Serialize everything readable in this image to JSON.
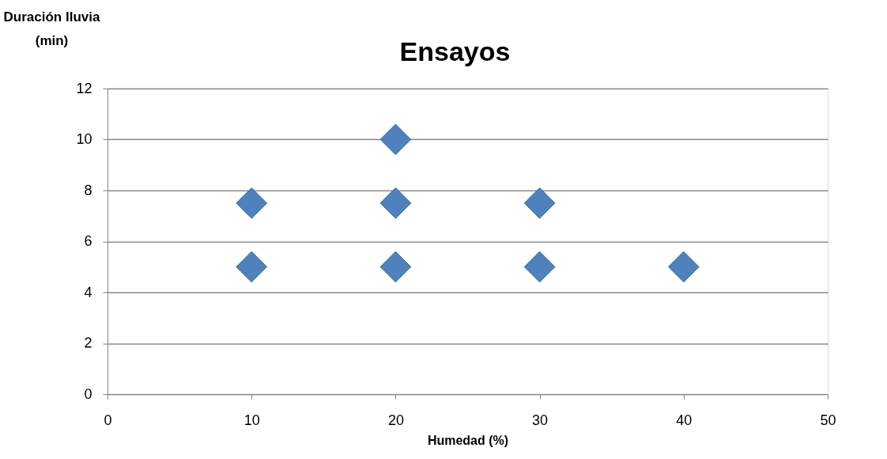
{
  "chart_data": {
    "type": "scatter",
    "title": "Ensayos",
    "xlabel": "Humedad (%)",
    "ylabel": "Duración lluvia (min)",
    "x": [
      10,
      10,
      20,
      20,
      20,
      30,
      30,
      40
    ],
    "values": [
      7.5,
      5,
      10,
      7.5,
      5,
      7.5,
      5,
      5
    ],
    "color": "#4f81bd",
    "marker": "diamond",
    "xlim": [
      0,
      50
    ],
    "xticks": [
      0,
      10,
      20,
      30,
      40,
      50
    ],
    "ylim": [
      0,
      12
    ],
    "yticks": [
      0,
      2,
      4,
      6,
      8,
      10,
      12
    ],
    "grid": "y"
  }
}
